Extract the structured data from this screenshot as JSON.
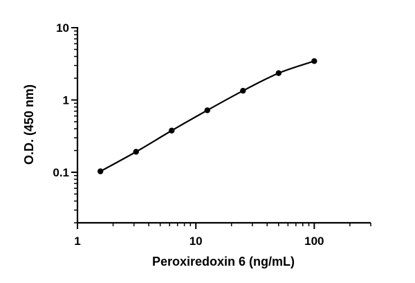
{
  "chart_data": {
    "type": "scatter",
    "title": "",
    "xlabel": "Peroxiredoxin 6 (ng/mL)",
    "ylabel": "O.D. (450 nm)",
    "x_scale": "log",
    "y_scale": "log",
    "xlim": [
      1,
      300
    ],
    "ylim": [
      0.02,
      10
    ],
    "x_ticks": [
      1,
      10,
      100
    ],
    "x_tick_labels": [
      "1",
      "10",
      "100"
    ],
    "y_ticks": [
      0.1,
      1,
      10
    ],
    "y_tick_labels": [
      "0.1",
      "1",
      "10"
    ],
    "grid": false,
    "legend": "none",
    "fit_curve": true,
    "series": [
      {
        "x": [
          1.5625,
          3.125,
          6.25,
          12.5,
          25,
          50,
          100
        ],
        "y": [
          0.103,
          0.192,
          0.377,
          0.72,
          1.34,
          2.35,
          3.45
        ]
      }
    ],
    "colors": {
      "points": "#000000",
      "curve": "#000000",
      "axes": "#000000"
    }
  }
}
